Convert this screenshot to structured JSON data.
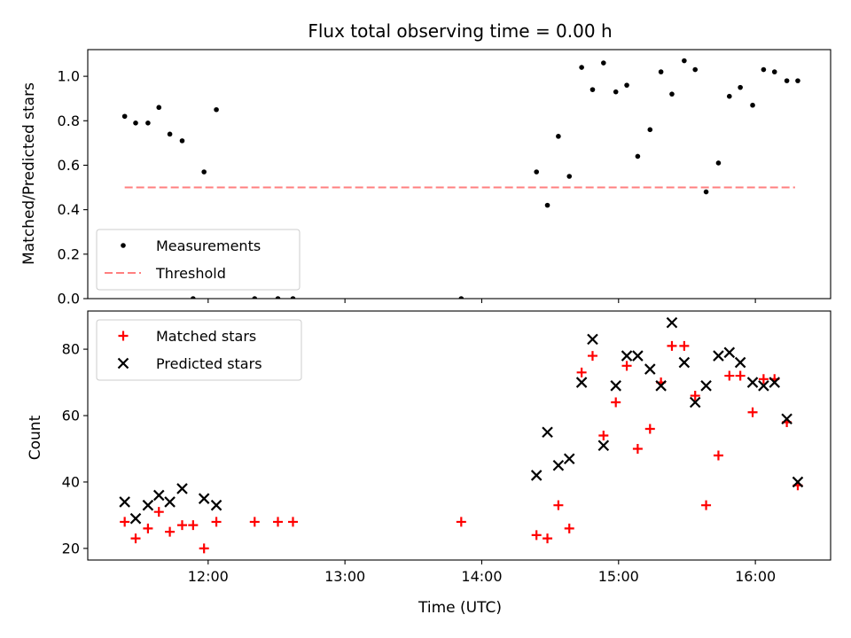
{
  "chart_data": [
    {
      "type": "scatter",
      "title": "Flux total observing time = 0.00 h",
      "xlabel": "",
      "ylabel": "Matched/Predicted stars",
      "xlim": [
        11.12,
        16.55
      ],
      "ylim": [
        0.0,
        1.12
      ],
      "yticks": [
        0.0,
        0.2,
        0.4,
        0.6,
        0.8,
        1.0
      ],
      "ytick_labels": [
        "0.0",
        "0.2",
        "0.4",
        "0.6",
        "0.8",
        "1.0"
      ],
      "xticks": [
        12,
        13,
        14,
        15,
        16
      ],
      "legend": {
        "position": "lower-left",
        "entries": [
          {
            "label": "Measurements",
            "marker": "dot",
            "color": "#000000"
          },
          {
            "label": "Threshold",
            "marker": "dashed-line",
            "color": "#ff7f7f"
          }
        ]
      },
      "series": [
        {
          "name": "Measurements",
          "marker": "dot",
          "color": "#000000",
          "points": [
            [
              11.39,
              0.82
            ],
            [
              11.47,
              0.79
            ],
            [
              11.56,
              0.79
            ],
            [
              11.64,
              0.86
            ],
            [
              11.72,
              0.74
            ],
            [
              11.81,
              0.71
            ],
            [
              11.89,
              0.0
            ],
            [
              11.97,
              0.57
            ],
            [
              12.06,
              0.85
            ],
            [
              12.34,
              0.0
            ],
            [
              12.51,
              0.0
            ],
            [
              12.62,
              0.0
            ],
            [
              13.85,
              0.0
            ],
            [
              14.4,
              0.57
            ],
            [
              14.48,
              0.42
            ],
            [
              14.56,
              0.73
            ],
            [
              14.64,
              0.55
            ],
            [
              14.73,
              1.04
            ],
            [
              14.81,
              0.94
            ],
            [
              14.89,
              1.06
            ],
            [
              14.98,
              0.93
            ],
            [
              15.06,
              0.96
            ],
            [
              15.14,
              0.64
            ],
            [
              15.23,
              0.76
            ],
            [
              15.31,
              1.02
            ],
            [
              15.39,
              0.92
            ],
            [
              15.48,
              1.07
            ],
            [
              15.56,
              1.03
            ],
            [
              15.64,
              0.48
            ],
            [
              15.73,
              0.61
            ],
            [
              15.81,
              0.91
            ],
            [
              15.89,
              0.95
            ],
            [
              15.98,
              0.87
            ],
            [
              16.06,
              1.03
            ],
            [
              16.14,
              1.02
            ],
            [
              16.23,
              0.98
            ],
            [
              16.31,
              0.98
            ]
          ]
        },
        {
          "name": "Threshold",
          "marker": "dashed-line",
          "color": "#ff7f7f",
          "points": [
            [
              11.39,
              0.5
            ],
            [
              16.29,
              0.5
            ]
          ]
        }
      ]
    },
    {
      "type": "scatter",
      "title": "",
      "xlabel": "Time (UTC)",
      "ylabel": "Count",
      "xlim": [
        11.12,
        16.55
      ],
      "ylim": [
        16.5,
        91.5
      ],
      "yticks": [
        20,
        40,
        60,
        80
      ],
      "ytick_labels": [
        "20",
        "40",
        "60",
        "80"
      ],
      "xticks": [
        12,
        13,
        14,
        15,
        16
      ],
      "xtick_labels": [
        "12:00",
        "13:00",
        "14:00",
        "15:00",
        "16:00"
      ],
      "legend": {
        "position": "top-left",
        "entries": [
          {
            "label": "Matched stars",
            "marker": "plus",
            "color": "#ff0000"
          },
          {
            "label": "Predicted stars",
            "marker": "x",
            "color": "#000000"
          }
        ]
      },
      "series": [
        {
          "name": "Matched stars",
          "marker": "plus",
          "color": "#ff0000",
          "points": [
            [
              11.39,
              28
            ],
            [
              11.47,
              23
            ],
            [
              11.56,
              26
            ],
            [
              11.64,
              31
            ],
            [
              11.72,
              25
            ],
            [
              11.81,
              27
            ],
            [
              11.89,
              27
            ],
            [
              11.97,
              20
            ],
            [
              12.06,
              28
            ],
            [
              12.34,
              28
            ],
            [
              12.51,
              28
            ],
            [
              12.62,
              28
            ],
            [
              13.85,
              28
            ],
            [
              14.4,
              24
            ],
            [
              14.48,
              23
            ],
            [
              14.56,
              33
            ],
            [
              14.64,
              26
            ],
            [
              14.73,
              73
            ],
            [
              14.81,
              78
            ],
            [
              14.89,
              54
            ],
            [
              14.98,
              64
            ],
            [
              15.06,
              75
            ],
            [
              15.14,
              50
            ],
            [
              15.23,
              56
            ],
            [
              15.31,
              70
            ],
            [
              15.39,
              81
            ],
            [
              15.48,
              81
            ],
            [
              15.56,
              66
            ],
            [
              15.64,
              33
            ],
            [
              15.73,
              48
            ],
            [
              15.81,
              72
            ],
            [
              15.89,
              72
            ],
            [
              15.98,
              61
            ],
            [
              16.06,
              71
            ],
            [
              16.14,
              71
            ],
            [
              16.23,
              58
            ],
            [
              16.31,
              39
            ]
          ]
        },
        {
          "name": "Predicted stars",
          "marker": "x",
          "color": "#000000",
          "points": [
            [
              11.39,
              34
            ],
            [
              11.47,
              29
            ],
            [
              11.56,
              33
            ],
            [
              11.64,
              36
            ],
            [
              11.72,
              34
            ],
            [
              11.81,
              38
            ],
            [
              11.97,
              35
            ],
            [
              12.06,
              33
            ],
            [
              14.4,
              42
            ],
            [
              14.48,
              55
            ],
            [
              14.56,
              45
            ],
            [
              14.64,
              47
            ],
            [
              14.73,
              70
            ],
            [
              14.81,
              83
            ],
            [
              14.89,
              51
            ],
            [
              14.98,
              69
            ],
            [
              15.06,
              78
            ],
            [
              15.14,
              78
            ],
            [
              15.23,
              74
            ],
            [
              15.31,
              69
            ],
            [
              15.39,
              88
            ],
            [
              15.48,
              76
            ],
            [
              15.56,
              64
            ],
            [
              15.64,
              69
            ],
            [
              15.73,
              78
            ],
            [
              15.81,
              79
            ],
            [
              15.89,
              76
            ],
            [
              15.98,
              70
            ],
            [
              16.06,
              69
            ],
            [
              16.14,
              70
            ],
            [
              16.23,
              59
            ],
            [
              16.31,
              40
            ]
          ]
        }
      ]
    }
  ]
}
